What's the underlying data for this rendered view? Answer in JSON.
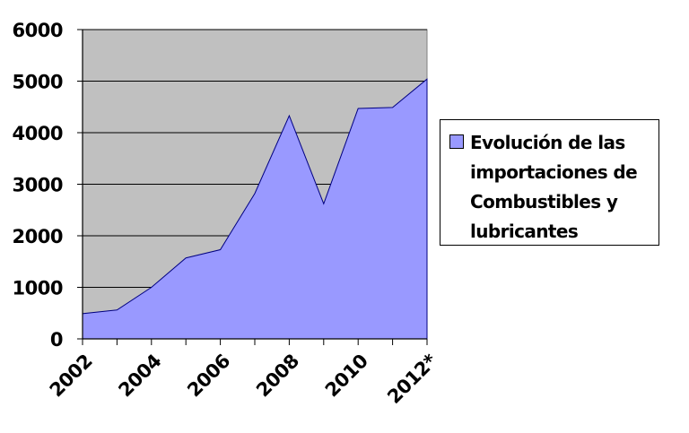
{
  "chart_data": {
    "type": "area",
    "title": "",
    "xlabel": "",
    "ylabel": "",
    "x": [
      "2002",
      "2003",
      "2004",
      "2005",
      "2006",
      "2007",
      "2008",
      "2009",
      "2010",
      "2011",
      "2012*"
    ],
    "tick_labels": [
      "2002",
      "2004",
      "2006",
      "2008",
      "2010",
      "2012*"
    ],
    "series": [
      {
        "name": "Evolución de las importaciones de Combustibles y lubricantes",
        "values": [
          490,
          560,
          1000,
          1570,
          1730,
          2820,
          4330,
          2620,
          4470,
          4490,
          5040
        ],
        "color": "#9999ff"
      }
    ],
    "ylim": [
      0,
      6000
    ],
    "yticks": [
      0,
      1000,
      2000,
      3000,
      4000,
      5000,
      6000
    ],
    "grid": true,
    "plot_background": "#c0c0c0",
    "legend_position": "right"
  },
  "legend": {
    "label": "Evolución de las importaciones de Combustibles y lubricantes"
  }
}
